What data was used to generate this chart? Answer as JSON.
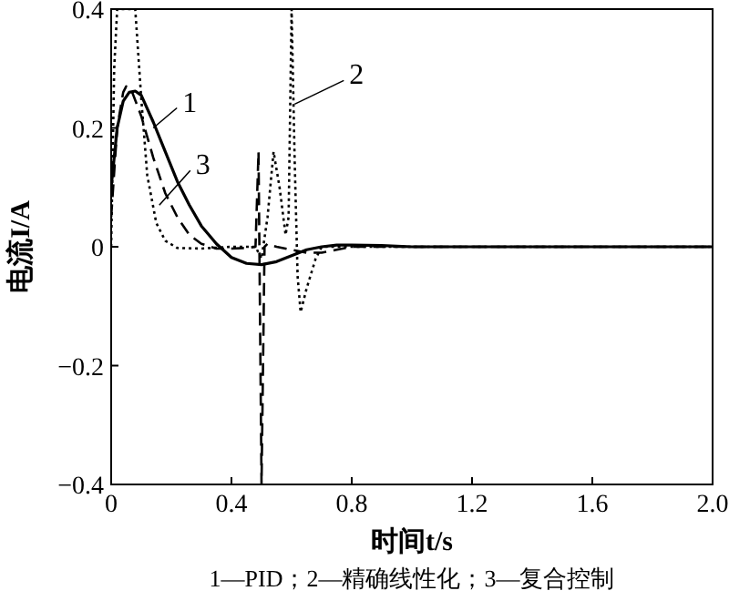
{
  "chart_data": {
    "type": "line",
    "xlabel": "时间t/s",
    "ylabel": "电流I/A",
    "xlim": [
      0,
      2.0
    ],
    "ylim": [
      -0.4,
      0.4
    ],
    "xticks": [
      0,
      0.4,
      0.8,
      1.2,
      1.6,
      {
        "value": 2.0,
        "label": "2.0"
      }
    ],
    "yticks": [
      {
        "value": -0.4,
        "label": "−0.4"
      },
      {
        "value": -0.2,
        "label": "−0.2"
      },
      0,
      0.2,
      0.4
    ],
    "grid": false,
    "series": [
      {
        "color": "#000000",
        "line_style": "solid",
        "x": [
          0,
          0.02,
          0.04,
          0.06,
          0.08,
          0.1,
          0.14,
          0.18,
          0.22,
          0.26,
          0.3,
          0.35,
          0.4,
          0.45,
          0.5,
          0.55,
          0.6,
          0.65,
          0.7,
          0.75,
          0.8,
          0.9,
          1.0,
          1.2,
          1.6,
          2.0
        ],
        "values": [
          0.1,
          0.2,
          0.245,
          0.26,
          0.262,
          0.255,
          0.21,
          0.16,
          0.11,
          0.07,
          0.035,
          0.005,
          -0.018,
          -0.028,
          -0.03,
          -0.025,
          -0.015,
          -0.005,
          0,
          0.003,
          0.003,
          0.002,
          0,
          0,
          0,
          0
        ]
      },
      {
        "color": "#000000",
        "line_style": "dotted",
        "x": [
          0,
          0.01,
          0.02,
          0.05,
          0.08,
          0.1,
          0.12,
          0.15,
          0.18,
          0.22,
          0.3,
          0.4,
          0.48,
          0.5,
          0.52,
          0.54,
          0.56,
          0.58,
          0.59,
          0.6,
          0.61,
          0.62,
          0.63,
          0.65,
          0.68,
          0.7,
          0.75,
          0.8,
          1.0,
          1.6,
          2.0
        ],
        "values": [
          0,
          0.3,
          0.4,
          0.4,
          0.4,
          0.25,
          0.12,
          0.04,
          0.01,
          -0.002,
          -0.003,
          0,
          0,
          -0.02,
          0.05,
          0.16,
          0.1,
          0.02,
          0.05,
          0.4,
          0.15,
          -0.05,
          -0.11,
          -0.07,
          -0.02,
          0,
          0,
          0,
          0,
          0,
          0
        ]
      },
      {
        "color": "#000000",
        "line_style": "dashed",
        "x": [
          0,
          0.02,
          0.04,
          0.05,
          0.07,
          0.1,
          0.14,
          0.18,
          0.22,
          0.26,
          0.3,
          0.35,
          0.4,
          0.45,
          0.48,
          0.49,
          0.5,
          0.51,
          0.52,
          0.55,
          0.6,
          0.65,
          0.7,
          0.75,
          0.8,
          1.0,
          2.0
        ],
        "values": [
          0.05,
          0.2,
          0.26,
          0.27,
          0.26,
          0.22,
          0.15,
          0.09,
          0.05,
          0.02,
          0.005,
          -0.003,
          -0.003,
          -0.002,
          0,
          0.16,
          -0.4,
          0,
          0.005,
          0,
          -0.005,
          -0.01,
          -0.01,
          -0.005,
          0,
          0,
          0
        ]
      }
    ],
    "annotations": [
      {
        "text": "1",
        "x": 0.14,
        "y": 0.2
      },
      {
        "text": "2",
        "x": 0.61,
        "y": 0.24
      },
      {
        "text": "3",
        "x": 0.16,
        "y": 0.07
      },
      "1—PID；2—精确线性化；3—复合控制"
    ]
  }
}
